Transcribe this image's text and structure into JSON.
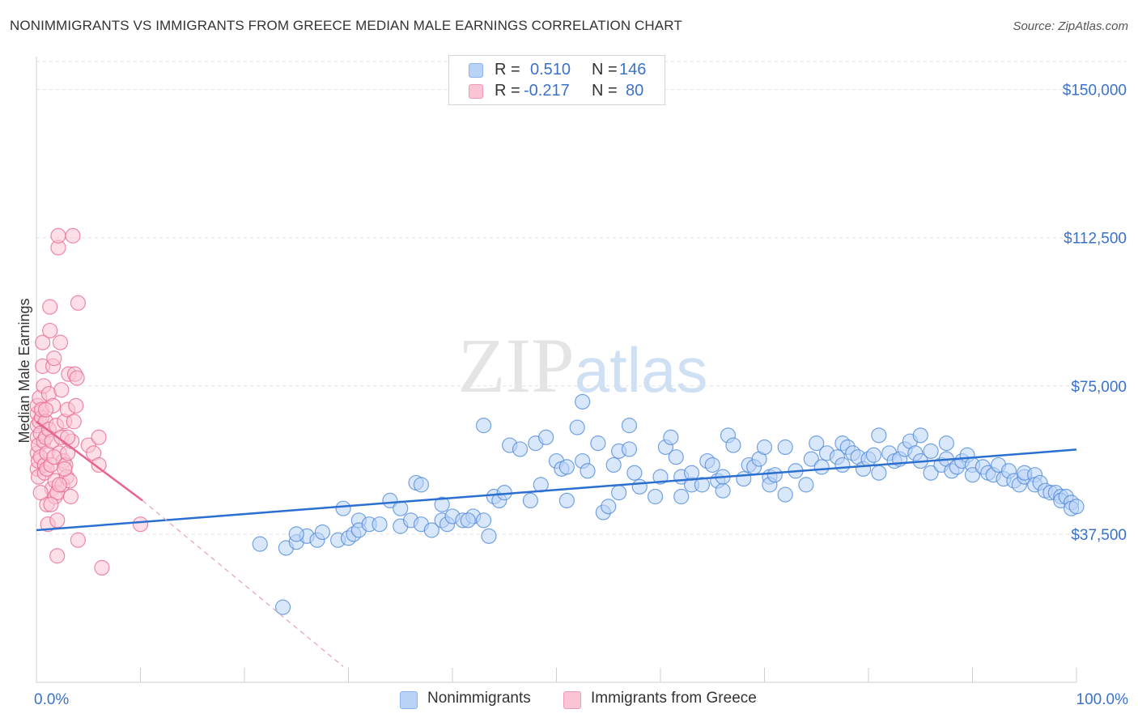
{
  "chart_data": {
    "type": "scatter",
    "title": "NONIMMIGRANTS VS IMMIGRANTS FROM GREECE MEDIAN MALE EARNINGS CORRELATION CHART",
    "source": "Source: ZipAtlas.com",
    "xlabel": "",
    "ylabel": "Median Male Earnings",
    "xlim": [
      0,
      100
    ],
    "ylim": [
      0,
      157500
    ],
    "x_tick_labels": [
      "0.0%",
      "100.0%"
    ],
    "y_ticks": [
      37500,
      75000,
      112500,
      150000
    ],
    "y_tick_labels": [
      "$37,500",
      "$75,000",
      "$112,500",
      "$150,000"
    ],
    "grid": true,
    "watermark": "ZIPatlas",
    "legend_stats": [
      {
        "r_label": "R =",
        "r_value": "0.510",
        "n_label": "N =",
        "n_value": "146"
      },
      {
        "r_label": "R =",
        "r_value": "-0.217",
        "n_label": "N =",
        "n_value": "80"
      }
    ],
    "series": [
      {
        "name": "Nonimmigrants",
        "color": "#4a86d8",
        "fill": "#b9d3f7",
        "trendline": {
          "x": [
            0,
            100
          ],
          "y": [
            38500,
            58900
          ]
        },
        "points": [
          [
            21.5,
            35
          ],
          [
            23.7,
            19
          ],
          [
            24,
            34
          ],
          [
            25,
            35.5
          ],
          [
            26,
            37
          ],
          [
            25,
            37.5
          ],
          [
            27,
            36
          ],
          [
            27.5,
            38
          ],
          [
            29,
            36
          ],
          [
            30,
            36.5
          ],
          [
            30.5,
            37.5
          ],
          [
            29.5,
            44
          ],
          [
            31,
            41
          ],
          [
            31,
            38.5
          ],
          [
            32,
            40
          ],
          [
            33,
            40
          ],
          [
            34,
            46
          ],
          [
            35,
            39.5
          ],
          [
            35,
            44
          ],
          [
            36,
            41
          ],
          [
            37,
            40
          ],
          [
            36.5,
            50.5
          ],
          [
            37,
            50
          ],
          [
            38,
            38.5
          ],
          [
            39,
            41
          ],
          [
            39.5,
            40
          ],
          [
            39,
            45
          ],
          [
            40,
            42
          ],
          [
            41,
            41
          ],
          [
            42,
            42
          ],
          [
            41.5,
            41
          ],
          [
            43,
            41
          ],
          [
            43.5,
            37
          ],
          [
            44,
            47
          ],
          [
            44.5,
            46
          ],
          [
            45,
            48
          ],
          [
            43,
            65
          ],
          [
            45.5,
            60
          ],
          [
            46.5,
            59
          ],
          [
            47.5,
            46
          ],
          [
            48,
            60.5
          ],
          [
            48.5,
            50
          ],
          [
            49,
            62
          ],
          [
            50,
            56
          ],
          [
            50.5,
            54
          ],
          [
            51,
            54.5
          ],
          [
            51,
            46
          ],
          [
            52,
            64.5
          ],
          [
            52.5,
            56
          ],
          [
            52.5,
            71
          ],
          [
            53,
            53.5
          ],
          [
            54,
            60.5
          ],
          [
            54.5,
            43
          ],
          [
            55,
            44.5
          ],
          [
            55.5,
            55
          ],
          [
            56,
            48
          ],
          [
            56,
            58.5
          ],
          [
            57,
            59
          ],
          [
            57,
            65
          ],
          [
            57.5,
            53
          ],
          [
            58,
            49.5
          ],
          [
            59.5,
            47
          ],
          [
            60,
            52
          ],
          [
            60.5,
            59.5
          ],
          [
            61,
            62
          ],
          [
            61.5,
            57
          ],
          [
            62,
            47
          ],
          [
            62,
            52
          ],
          [
            63,
            50
          ],
          [
            63,
            53
          ],
          [
            64,
            50
          ],
          [
            64.5,
            56
          ],
          [
            65.5,
            51
          ],
          [
            65,
            55
          ],
          [
            66,
            48.5
          ],
          [
            66,
            52
          ],
          [
            66.5,
            62.5
          ],
          [
            67,
            60
          ],
          [
            68,
            51.5
          ],
          [
            68.5,
            55
          ],
          [
            69,
            54.5
          ],
          [
            69.5,
            56.5
          ],
          [
            70,
            59.5
          ],
          [
            70.5,
            52
          ],
          [
            70.5,
            50
          ],
          [
            71,
            52.5
          ],
          [
            72,
            47.5
          ],
          [
            72,
            59.5
          ],
          [
            73,
            53.5
          ],
          [
            74,
            50
          ],
          [
            74.5,
            56.5
          ],
          [
            75,
            60.5
          ],
          [
            75.5,
            54.5
          ],
          [
            76,
            58
          ],
          [
            77,
            57
          ],
          [
            77.5,
            60.5
          ],
          [
            77.5,
            55
          ],
          [
            78,
            59.5
          ],
          [
            78.5,
            58
          ],
          [
            79,
            57
          ],
          [
            79.5,
            54
          ],
          [
            80,
            56.5
          ],
          [
            80.5,
            57.5
          ],
          [
            81,
            53
          ],
          [
            81,
            62.5
          ],
          [
            82,
            58
          ],
          [
            82.5,
            56
          ],
          [
            83,
            56.5
          ],
          [
            83.5,
            59
          ],
          [
            84,
            61
          ],
          [
            84.5,
            58
          ],
          [
            85,
            62.5
          ],
          [
            85,
            56
          ],
          [
            86,
            53
          ],
          [
            86,
            58.5
          ],
          [
            87,
            55
          ],
          [
            87.5,
            56.5
          ],
          [
            87.5,
            60.5
          ],
          [
            88,
            53.5
          ],
          [
            88.5,
            54.5
          ],
          [
            89,
            56
          ],
          [
            89.5,
            57.5
          ],
          [
            90,
            55
          ],
          [
            90,
            52.5
          ],
          [
            91,
            54.5
          ],
          [
            91.5,
            53
          ],
          [
            92,
            52.5
          ],
          [
            92.5,
            55
          ],
          [
            93,
            51.5
          ],
          [
            93.5,
            53.5
          ],
          [
            94,
            51
          ],
          [
            94.5,
            50
          ],
          [
            95,
            52
          ],
          [
            95,
            53
          ],
          [
            96,
            52.5
          ],
          [
            96,
            50
          ],
          [
            96.5,
            50.5
          ],
          [
            97,
            48.5
          ],
          [
            97.5,
            48
          ],
          [
            98,
            48
          ],
          [
            98.5,
            47
          ],
          [
            98.5,
            46
          ],
          [
            99,
            47
          ],
          [
            99.5,
            45.5
          ],
          [
            99.5,
            44
          ],
          [
            100,
            44.5
          ]
        ]
      },
      {
        "name": "Immigrants from Greece",
        "color": "#e8648f",
        "fill": "#f9c4d4",
        "trendline": {
          "x": [
            0,
            10.2
          ],
          "y": [
            66000,
            46000
          ]
        },
        "trendline_dashed": {
          "x": [
            10.2,
            29.5
          ],
          "y": [
            46000,
            4000
          ]
        },
        "points": [
          [
            0.1,
            54
          ],
          [
            0.1,
            58
          ],
          [
            0.1,
            62
          ],
          [
            0.1,
            65
          ],
          [
            0.1,
            68
          ],
          [
            0.1,
            70
          ],
          [
            0.2,
            60
          ],
          [
            0.2,
            56
          ],
          [
            0.2,
            52
          ],
          [
            0.3,
            66
          ],
          [
            0.3,
            72
          ],
          [
            0.4,
            63
          ],
          [
            0.4,
            57
          ],
          [
            0.5,
            67
          ],
          [
            0.5,
            69
          ],
          [
            0.6,
            86
          ],
          [
            0.6,
            80
          ],
          [
            0.7,
            75
          ],
          [
            0.7,
            61
          ],
          [
            0.8,
            55
          ],
          [
            0.8,
            53
          ],
          [
            0.9,
            66
          ],
          [
            0.9,
            62
          ],
          [
            1,
            58
          ],
          [
            1,
            54
          ],
          [
            1,
            45
          ],
          [
            1.1,
            40
          ],
          [
            1.2,
            73
          ],
          [
            1.2,
            64
          ],
          [
            1.3,
            89
          ],
          [
            1.3,
            95
          ],
          [
            1.4,
            55
          ],
          [
            1.5,
            49
          ],
          [
            1.5,
            61
          ],
          [
            1.6,
            80
          ],
          [
            1.6,
            70
          ],
          [
            1.7,
            82
          ],
          [
            1.8,
            51
          ],
          [
            1.8,
            47
          ],
          [
            1.9,
            65
          ],
          [
            2,
            48
          ],
          [
            2,
            41
          ],
          [
            2,
            32
          ],
          [
            2.1,
            110
          ],
          [
            2.1,
            113
          ],
          [
            2.2,
            58
          ],
          [
            2.3,
            86
          ],
          [
            2.4,
            62
          ],
          [
            2.4,
            74
          ],
          [
            2.5,
            50
          ],
          [
            2.6,
            56
          ],
          [
            2.7,
            66
          ],
          [
            2.8,
            55
          ],
          [
            2.9,
            52
          ],
          [
            3,
            58
          ],
          [
            3,
            69
          ],
          [
            3.1,
            78
          ],
          [
            3.2,
            51
          ],
          [
            3.3,
            47
          ],
          [
            3.4,
            61
          ],
          [
            3.5,
            113
          ],
          [
            3.6,
            66
          ],
          [
            3.7,
            78
          ],
          [
            3.8,
            70
          ],
          [
            3.9,
            77
          ],
          [
            4,
            36
          ],
          [
            4,
            96
          ],
          [
            5,
            60
          ],
          [
            5.5,
            58
          ],
          [
            6,
            62
          ],
          [
            6,
            55
          ],
          [
            6.3,
            29
          ],
          [
            10,
            40
          ],
          [
            1.4,
            45
          ],
          [
            0.9,
            69
          ],
          [
            1.7,
            57
          ],
          [
            2.2,
            50
          ],
          [
            2.7,
            54
          ],
          [
            0.4,
            48
          ],
          [
            3,
            62
          ]
        ]
      }
    ]
  }
}
